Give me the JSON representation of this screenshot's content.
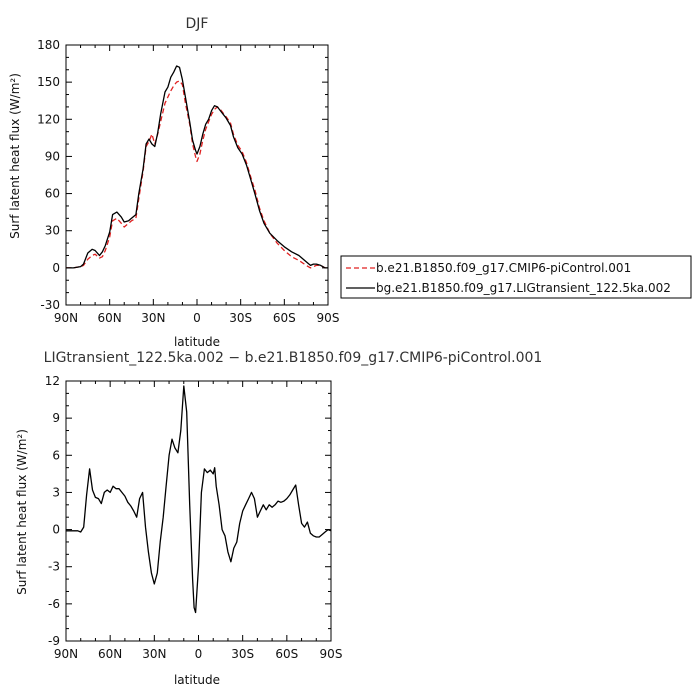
{
  "chart_data": [
    {
      "type": "line",
      "title": "DJF",
      "xlabel": "latitude",
      "ylabel": "Surf latent heat flux (W/m²)",
      "xlim": [
        90,
        -90
      ],
      "ylim": [
        -30,
        180
      ],
      "yticks": [
        -30,
        0,
        30,
        60,
        90,
        120,
        150,
        180
      ],
      "xticks": [
        {
          "value": 90,
          "label": "90N"
        },
        {
          "value": 60,
          "label": "60N"
        },
        {
          "value": 30,
          "label": "30N"
        },
        {
          "value": 0,
          "label": "0"
        },
        {
          "value": -30,
          "label": "30S"
        },
        {
          "value": -60,
          "label": "60S"
        },
        {
          "value": -90,
          "label": "90S"
        }
      ],
      "legend_position": "right",
      "series": [
        {
          "name": "b.e21.B1850.f09_g17.CMIP6-piControl.001",
          "color": "#e02020",
          "dash": "dashed",
          "x": [
            90,
            85,
            80,
            78,
            75,
            72,
            70,
            67,
            65,
            63,
            60,
            58,
            55,
            52,
            50,
            47,
            45,
            42,
            40,
            37,
            35,
            33,
            31,
            29,
            27,
            25,
            22,
            20,
            18,
            16,
            14,
            12,
            10,
            8,
            5,
            3,
            1,
            0,
            -2,
            -4,
            -6,
            -8,
            -10,
            -12,
            -14,
            -16,
            -18,
            -20,
            -23,
            -25,
            -28,
            -31,
            -34,
            -37,
            -40,
            -43,
            -46,
            -50,
            -55,
            -60,
            -65,
            -70,
            -75,
            -78,
            -80,
            -82,
            -85,
            -88,
            -90
          ],
          "y": [
            0,
            0,
            1,
            2,
            7,
            10,
            11,
            8,
            9,
            14,
            25,
            38,
            40,
            36,
            33,
            36,
            38,
            40,
            56,
            78,
            98,
            102,
            108,
            100,
            108,
            118,
            133,
            138,
            143,
            147,
            150,
            151,
            148,
            133,
            116,
            100,
            90,
            86,
            92,
            103,
            112,
            118,
            124,
            128,
            130,
            128,
            125,
            122,
            117,
            108,
            99,
            94,
            85,
            73,
            62,
            48,
            38,
            28,
            20,
            14,
            9,
            6,
            2,
            0,
            1,
            2,
            2,
            0,
            0
          ]
        },
        {
          "name": "bg.e21.B1850.f09_g17.LIGtransient_122.5ka.002",
          "color": "#000000",
          "dash": "solid",
          "x": [
            90,
            85,
            80,
            78,
            75,
            72,
            70,
            67,
            65,
            63,
            60,
            58,
            55,
            52,
            50,
            47,
            45,
            42,
            40,
            37,
            35,
            33,
            31,
            29,
            27,
            25,
            22,
            20,
            18,
            16,
            14,
            12,
            10,
            8,
            5,
            3,
            1,
            0,
            -2,
            -4,
            -6,
            -8,
            -10,
            -12,
            -14,
            -16,
            -18,
            -20,
            -23,
            -25,
            -28,
            -31,
            -34,
            -37,
            -40,
            -43,
            -46,
            -50,
            -55,
            -60,
            -65,
            -70,
            -75,
            -78,
            -80,
            -82,
            -85,
            -88,
            -90
          ],
          "y": [
            0,
            0,
            1,
            3,
            12,
            15,
            14,
            10,
            13,
            18,
            29,
            43,
            45,
            41,
            37,
            38,
            40,
            43,
            60,
            80,
            100,
            104,
            100,
            98,
            109,
            124,
            142,
            146,
            154,
            158,
            163,
            162,
            152,
            138,
            118,
            103,
            95,
            92,
            98,
            108,
            116,
            120,
            127,
            131,
            130,
            127,
            124,
            121,
            115,
            106,
            97,
            92,
            83,
            71,
            59,
            46,
            36,
            28,
            22,
            17,
            13,
            10,
            5,
            2,
            3,
            3,
            2,
            0,
            0
          ]
        }
      ]
    },
    {
      "type": "line",
      "title": "LIGtransient_122.5ka.002 − b.e21.B1850.f09_g17.CMIP6-piControl.001",
      "xlabel": "latitude",
      "ylabel": "Surf latent heat flux (W/m²)",
      "xlim": [
        90,
        -90
      ],
      "ylim": [
        -9,
        12
      ],
      "yticks": [
        -9,
        -6,
        -3,
        0,
        3,
        6,
        9,
        12
      ],
      "xticks": [
        {
          "value": 90,
          "label": "90N"
        },
        {
          "value": 60,
          "label": "60N"
        },
        {
          "value": 30,
          "label": "30N"
        },
        {
          "value": 0,
          "label": "0"
        },
        {
          "value": -30,
          "label": "30S"
        },
        {
          "value": -60,
          "label": "60S"
        },
        {
          "value": -90,
          "label": "90S"
        }
      ],
      "series": [
        {
          "name": "",
          "color": "#000000",
          "dash": "solid",
          "x": [
            90,
            87,
            84,
            82,
            80,
            78,
            76,
            74,
            72,
            70,
            68,
            66,
            64,
            62,
            60,
            58,
            56,
            54,
            52,
            50,
            48,
            46,
            44,
            42,
            40,
            38,
            36,
            34,
            32,
            30,
            28,
            26,
            24,
            22,
            20,
            18,
            16,
            14,
            12,
            10,
            8,
            6,
            4,
            3,
            2,
            0,
            -2,
            -4,
            -6,
            -8,
            -10,
            -11,
            -12,
            -14,
            -16,
            -18,
            -20,
            -22,
            -24,
            -26,
            -28,
            -30,
            -32,
            -34,
            -36,
            -38,
            -40,
            -42,
            -44,
            -46,
            -48,
            -50,
            -52,
            -54,
            -56,
            -58,
            -60,
            -62,
            -64,
            -66,
            -68,
            -70,
            -72,
            -74,
            -76,
            -78,
            -80,
            -82,
            -84,
            -86,
            -88,
            -90
          ],
          "y": [
            -0.1,
            -0.1,
            -0.1,
            -0.1,
            -0.2,
            0.2,
            2.8,
            4.9,
            3.2,
            2.6,
            2.5,
            2.1,
            3.0,
            3.2,
            3.0,
            3.5,
            3.3,
            3.3,
            3.0,
            2.7,
            2.2,
            1.9,
            1.5,
            1.0,
            2.5,
            3.0,
            0.2,
            -1.8,
            -3.5,
            -4.4,
            -3.5,
            -1.0,
            1.0,
            3.5,
            6.0,
            7.3,
            6.6,
            6.2,
            8.0,
            11.6,
            9.5,
            2.0,
            -4.0,
            -6.3,
            -6.7,
            -3.0,
            3.0,
            4.9,
            4.6,
            4.8,
            4.5,
            5.0,
            3.5,
            2.0,
            0.0,
            -0.5,
            -1.8,
            -2.6,
            -1.5,
            -1.0,
            0.5,
            1.5,
            2.0,
            2.5,
            3.0,
            2.5,
            1.0,
            1.5,
            2.0,
            1.6,
            2.0,
            1.8,
            2.0,
            2.3,
            2.2,
            2.3,
            2.5,
            2.8,
            3.2,
            3.6,
            2.0,
            0.5,
            0.2,
            0.6,
            -0.3,
            -0.5,
            -0.6,
            -0.6,
            -0.4,
            -0.2,
            0.0,
            -0.1
          ]
        }
      ]
    }
  ]
}
